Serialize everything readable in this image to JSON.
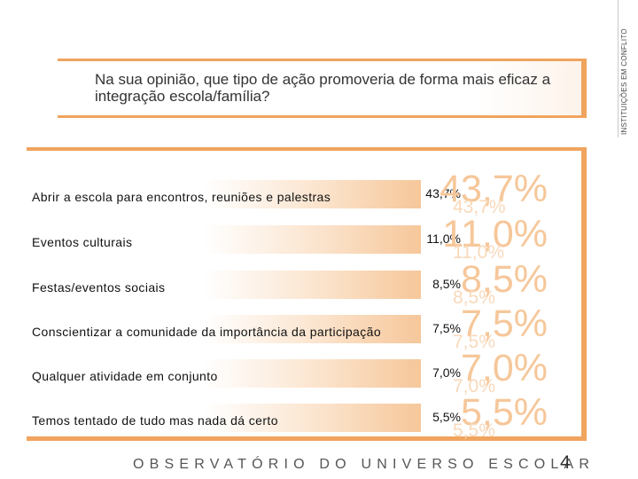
{
  "side_label": "INSTITUIÇÕES EM CONFLITO",
  "question": "Na sua opinião, que tipo de ação promoveria de forma mais eficaz a integração escola/família?",
  "answers": [
    {
      "label": "Abrir a escola para encontros, reuniões e palestras",
      "value": "43,7%"
    },
    {
      "label": "Eventos culturais",
      "value": "11,0%"
    },
    {
      "label": "Festas/eventos sociais",
      "value": "8,5%"
    },
    {
      "label": "Conscientizar a comunidade da importância da participação",
      "value": "7,5%"
    },
    {
      "label": "Qualquer atividade em conjunto",
      "value": "7,0%"
    },
    {
      "label": "Temos tentado de tudo mas nada dá certo",
      "value": "5,5%"
    }
  ],
  "footer": "OBSERVATÓRIO DO UNIVERSO ESCOLAR",
  "page_number": "4",
  "colors": {
    "accent": "#f0a45e",
    "pale_accent": "#f6c79a"
  }
}
